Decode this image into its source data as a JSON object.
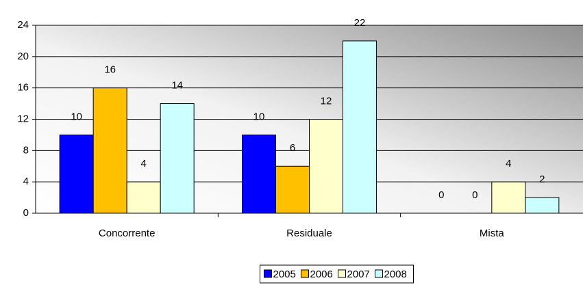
{
  "chart_data": {
    "type": "bar",
    "categories": [
      "Concorrente",
      "Residuale",
      "Mista"
    ],
    "series": [
      {
        "name": "2005",
        "color": "#0000ff",
        "values": [
          10,
          10,
          0
        ]
      },
      {
        "name": "2006",
        "color": "#ffc000",
        "values": [
          16,
          6,
          0
        ]
      },
      {
        "name": "2007",
        "color": "#ffffcc",
        "values": [
          4,
          12,
          4
        ]
      },
      {
        "name": "2008",
        "color": "#ccffff",
        "values": [
          14,
          22,
          2
        ]
      }
    ],
    "ylim": [
      0,
      24
    ],
    "yticks": [
      0,
      4,
      8,
      12,
      16,
      20,
      24
    ],
    "grid": true,
    "legend": "bottom"
  }
}
